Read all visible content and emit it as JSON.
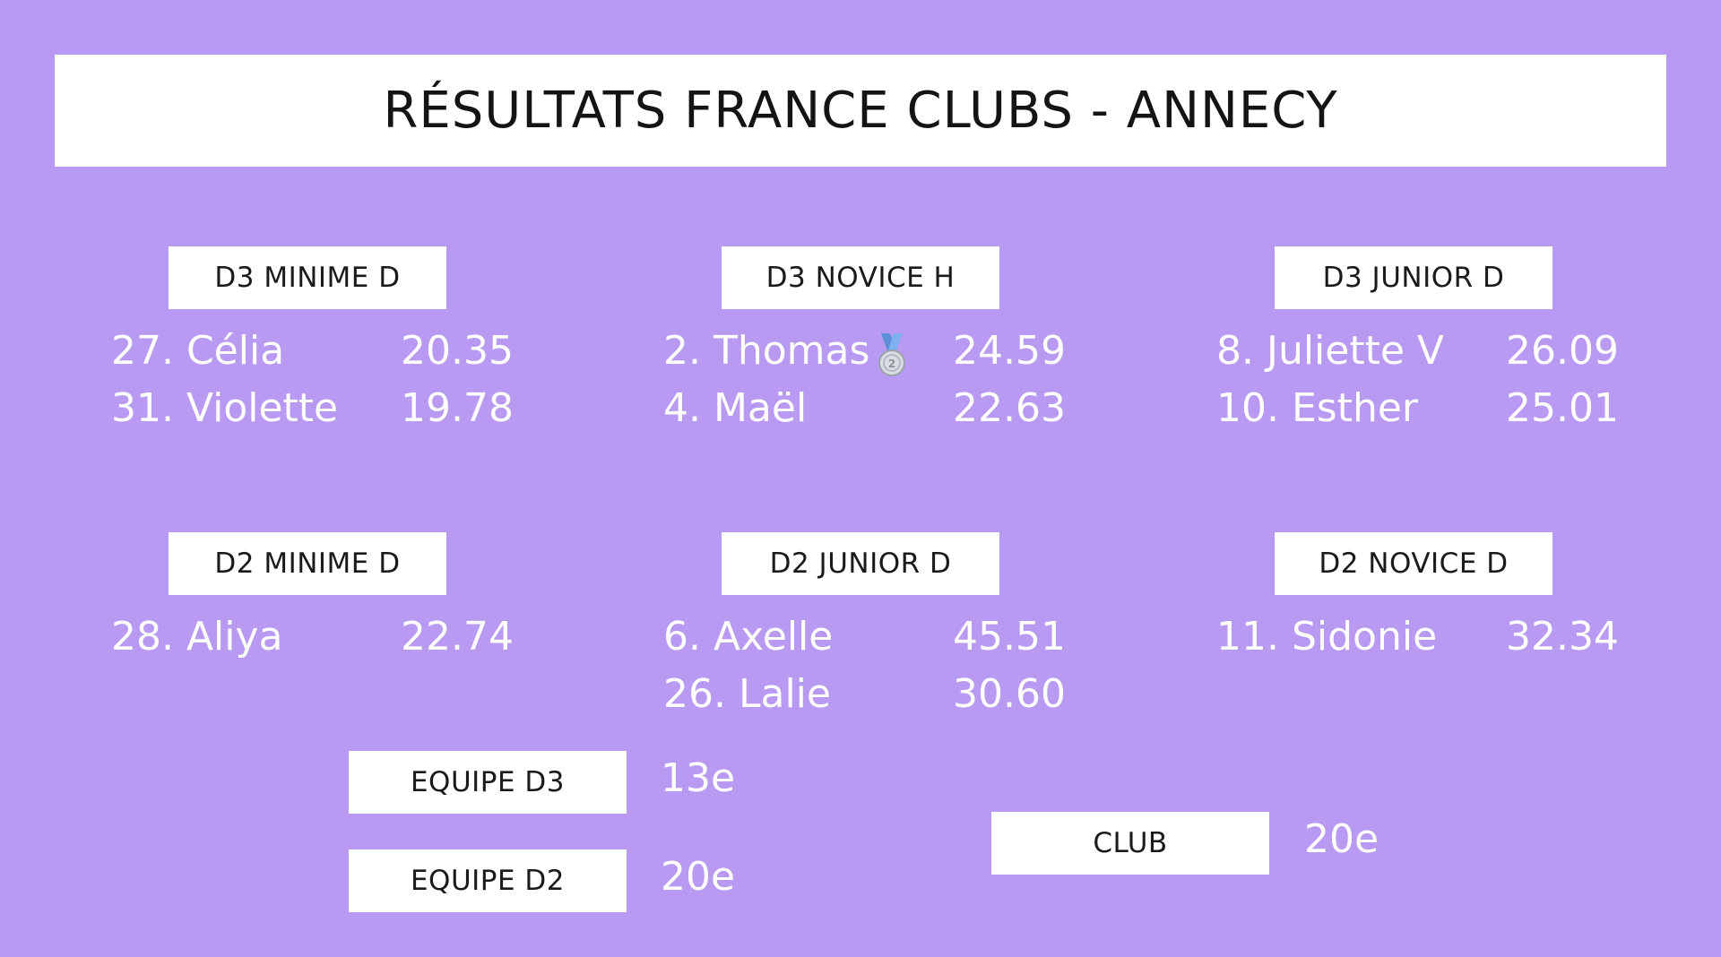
{
  "title": "RÉSULTATS FRANCE CLUBS - ANNECY",
  "categories": [
    {
      "label": "D3 MINIME D",
      "results": [
        {
          "name": "27. Célia",
          "score": "20.35"
        },
        {
          "name": "31. Violette",
          "score": "19.78"
        }
      ]
    },
    {
      "label": "D3 NOVICE H",
      "results": [
        {
          "name": "2. Thomas",
          "score": "24.59",
          "medal": "silver-medal-icon"
        },
        {
          "name": "4. Maël",
          "score": "22.63"
        }
      ]
    },
    {
      "label": "D3 JUNIOR D",
      "results": [
        {
          "name": "8. Juliette V",
          "score": "26.09"
        },
        {
          "name": "10. Esther",
          "score": "25.01"
        }
      ]
    },
    {
      "label": "D2 MINIME D",
      "results": [
        {
          "name": "28. Aliya",
          "score": "22.74"
        }
      ]
    },
    {
      "label": "D2 JUNIOR D",
      "results": [
        {
          "name": "6. Axelle",
          "score": "45.51"
        },
        {
          "name": "26. Lalie",
          "score": "30.60"
        }
      ]
    },
    {
      "label": "D2 NOVICE D",
      "results": [
        {
          "name": "11. Sidonie",
          "score": "32.34"
        }
      ]
    }
  ],
  "teams": [
    {
      "label": "EQUIPE D3",
      "rank": "13e"
    },
    {
      "label": "EQUIPE D2",
      "rank": "20e"
    },
    {
      "label": "CLUB",
      "rank": "20e"
    }
  ],
  "colors": {
    "background": "#b89af3",
    "box": "#ffffff",
    "box_text": "#1a1a1a",
    "result_text": "#ffffff"
  }
}
